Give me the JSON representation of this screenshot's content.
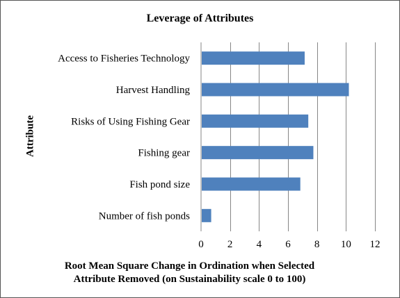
{
  "chart_data": {
    "type": "bar",
    "orientation": "horizontal",
    "title": "Leverage of Attributes",
    "ylabel": "Attribute",
    "xlabel_lines": [
      "Root Mean Square Change in Ordination when Selected",
      "Attribute Removed (on Sustainability scale 0 to 100)"
    ],
    "categories": [
      "Access to Fisheries Technology",
      "Harvest Handling",
      "Risks of Using Fishing Gear",
      "Fishing gear",
      "Fish pond size",
      "Number of fish ponds"
    ],
    "values": [
      7.15,
      10.2,
      7.4,
      7.75,
      6.85,
      0.7
    ],
    "xlim": [
      0,
      12
    ],
    "xticks": [
      0,
      2,
      4,
      6,
      8,
      10,
      12
    ],
    "grid": "vertical",
    "legend": "none",
    "bar_color": "#4f81bd",
    "grid_color": "#868686"
  }
}
